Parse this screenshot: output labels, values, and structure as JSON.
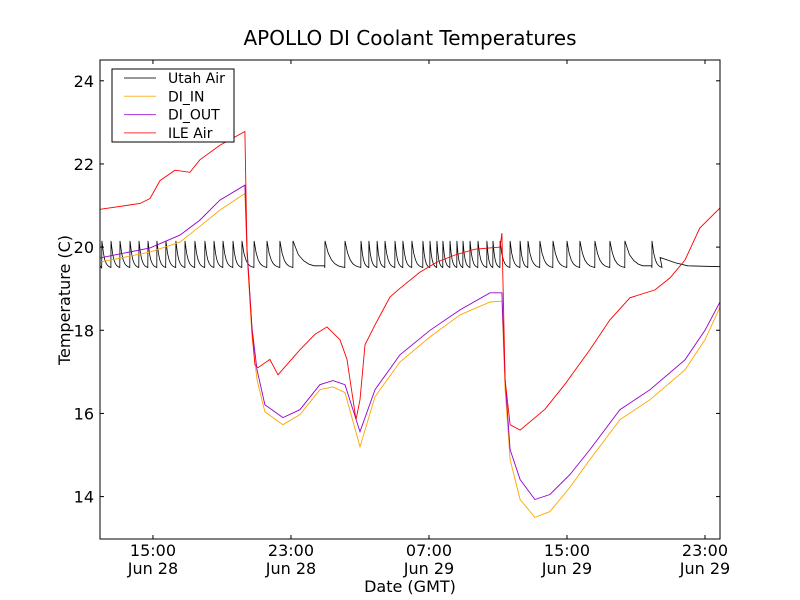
{
  "chart_data": {
    "type": "line",
    "title": "APOLLO DI Coolant Temperatures",
    "xlabel": "Date (GMT)",
    "ylabel": "Temperature (C)",
    "x_units": "hours since Jun 28 00:00 GMT",
    "xlim": [
      11.93,
      47.87
    ],
    "ylim": [
      12.98,
      24.5
    ],
    "xticks": [
      {
        "value": 15,
        "time": "15:00",
        "date": "Jun 28"
      },
      {
        "value": 23,
        "time": "23:00",
        "date": "Jun 28"
      },
      {
        "value": 31,
        "time": "07:00",
        "date": "Jun 29"
      },
      {
        "value": 39,
        "time": "15:00",
        "date": "Jun 29"
      },
      {
        "value": 47,
        "time": "23:00",
        "date": "Jun 29"
      }
    ],
    "yticks": [
      14,
      16,
      18,
      20,
      22,
      24
    ],
    "legend_position": "top-left",
    "series": [
      {
        "name": "Utah Air",
        "color": "#000000",
        "trough": 19.5,
        "peak": 20.15,
        "spike_hours": [
          12.04,
          12.57,
          13.09,
          13.67,
          14.19,
          14.71,
          15.23,
          15.75,
          16.33,
          16.86,
          17.43,
          18.01,
          18.54,
          19.06,
          19.64,
          20.16,
          20.86,
          21.61,
          22.36,
          23.12,
          24.97,
          26.13,
          27.06,
          27.52,
          27.99,
          28.45,
          29.03,
          29.49,
          30.01,
          30.65,
          31.06,
          31.46,
          31.81,
          32.22,
          32.62,
          32.97,
          33.38,
          33.84,
          34.36,
          34.71,
          35.12,
          35.7,
          36.28,
          36.74,
          37.43,
          38.19,
          39.0,
          39.75,
          40.62,
          41.49,
          42.36,
          43.93
        ],
        "tail": [
          [
            44.4,
            19.75
          ],
          [
            45.3,
            19.62
          ],
          [
            46.0,
            19.55
          ],
          [
            47.87,
            19.53
          ]
        ]
      },
      {
        "name": "DI_IN",
        "color": "#ffa500",
        "points": [
          [
            11.93,
            19.64
          ],
          [
            14.83,
            19.88
          ],
          [
            16.57,
            20.12
          ],
          [
            17.72,
            20.5
          ],
          [
            18.88,
            20.89
          ],
          [
            20.33,
            21.29
          ],
          [
            20.45,
            19.88
          ],
          [
            20.74,
            17.84
          ],
          [
            21.03,
            16.81
          ],
          [
            21.49,
            16.04
          ],
          [
            22.53,
            15.73
          ],
          [
            23.52,
            15.97
          ],
          [
            24.68,
            16.57
          ],
          [
            25.43,
            16.64
          ],
          [
            26.13,
            16.5
          ],
          [
            27.0,
            15.2
          ],
          [
            27.87,
            16.4
          ],
          [
            29.32,
            17.24
          ],
          [
            31.06,
            17.84
          ],
          [
            32.8,
            18.37
          ],
          [
            34.54,
            18.68
          ],
          [
            35.23,
            18.7
          ],
          [
            35.41,
            16.57
          ],
          [
            35.7,
            14.89
          ],
          [
            36.28,
            13.93
          ],
          [
            37.14,
            13.5
          ],
          [
            38.01,
            13.64
          ],
          [
            39.17,
            14.22
          ],
          [
            40.33,
            14.89
          ],
          [
            42.07,
            15.85
          ],
          [
            43.81,
            16.33
          ],
          [
            45.84,
            17.05
          ],
          [
            47.0,
            17.77
          ],
          [
            47.87,
            18.56
          ]
        ]
      },
      {
        "name": "DI_OUT",
        "color": "#9400d3",
        "points": [
          [
            11.93,
            19.74
          ],
          [
            14.83,
            19.98
          ],
          [
            16.57,
            20.29
          ],
          [
            17.72,
            20.65
          ],
          [
            18.88,
            21.13
          ],
          [
            20.33,
            21.49
          ],
          [
            20.45,
            19.98
          ],
          [
            20.74,
            18.06
          ],
          [
            21.03,
            17.05
          ],
          [
            21.49,
            16.21
          ],
          [
            22.53,
            15.9
          ],
          [
            23.52,
            16.09
          ],
          [
            24.68,
            16.69
          ],
          [
            25.43,
            16.79
          ],
          [
            26.13,
            16.69
          ],
          [
            27.0,
            15.56
          ],
          [
            27.87,
            16.57
          ],
          [
            29.32,
            17.41
          ],
          [
            31.06,
            18.0
          ],
          [
            32.8,
            18.49
          ],
          [
            34.54,
            18.9
          ],
          [
            35.23,
            18.9
          ],
          [
            35.41,
            16.81
          ],
          [
            35.7,
            15.13
          ],
          [
            36.28,
            14.41
          ],
          [
            37.14,
            13.93
          ],
          [
            38.01,
            14.05
          ],
          [
            39.17,
            14.53
          ],
          [
            40.33,
            15.13
          ],
          [
            42.07,
            16.09
          ],
          [
            43.81,
            16.57
          ],
          [
            45.84,
            17.29
          ],
          [
            47.0,
            18.0
          ],
          [
            47.87,
            18.68
          ]
        ]
      },
      {
        "name": "ILE Air",
        "color": "#ff0000",
        "points": [
          [
            11.93,
            20.91
          ],
          [
            14.25,
            21.05
          ],
          [
            14.83,
            21.17
          ],
          [
            15.41,
            21.6
          ],
          [
            16.28,
            21.85
          ],
          [
            17.14,
            21.8
          ],
          [
            17.72,
            22.1
          ],
          [
            18.88,
            22.45
          ],
          [
            20.33,
            22.78
          ],
          [
            20.45,
            19.9
          ],
          [
            20.74,
            18.0
          ],
          [
            20.91,
            17.17
          ],
          [
            21.09,
            17.1
          ],
          [
            21.78,
            17.3
          ],
          [
            22.25,
            16.93
          ],
          [
            23.52,
            17.53
          ],
          [
            24.39,
            17.9
          ],
          [
            25.09,
            18.08
          ],
          [
            25.84,
            17.77
          ],
          [
            26.25,
            17.3
          ],
          [
            26.77,
            15.85
          ],
          [
            27.0,
            16.33
          ],
          [
            27.29,
            17.65
          ],
          [
            27.87,
            18.13
          ],
          [
            28.74,
            18.8
          ],
          [
            29.32,
            19.01
          ],
          [
            30.48,
            19.4
          ],
          [
            31.46,
            19.64
          ],
          [
            32.51,
            19.81
          ],
          [
            33.67,
            19.95
          ],
          [
            35.12,
            20.0
          ],
          [
            35.23,
            20.34
          ],
          [
            35.41,
            16.81
          ],
          [
            35.7,
            15.73
          ],
          [
            36.28,
            15.6
          ],
          [
            37.72,
            16.1
          ],
          [
            38.88,
            16.7
          ],
          [
            40.33,
            17.53
          ],
          [
            41.49,
            18.25
          ],
          [
            42.65,
            18.78
          ],
          [
            44.1,
            18.97
          ],
          [
            44.97,
            19.26
          ],
          [
            45.84,
            19.69
          ],
          [
            46.7,
            20.46
          ],
          [
            47.87,
            20.94
          ]
        ]
      }
    ]
  }
}
